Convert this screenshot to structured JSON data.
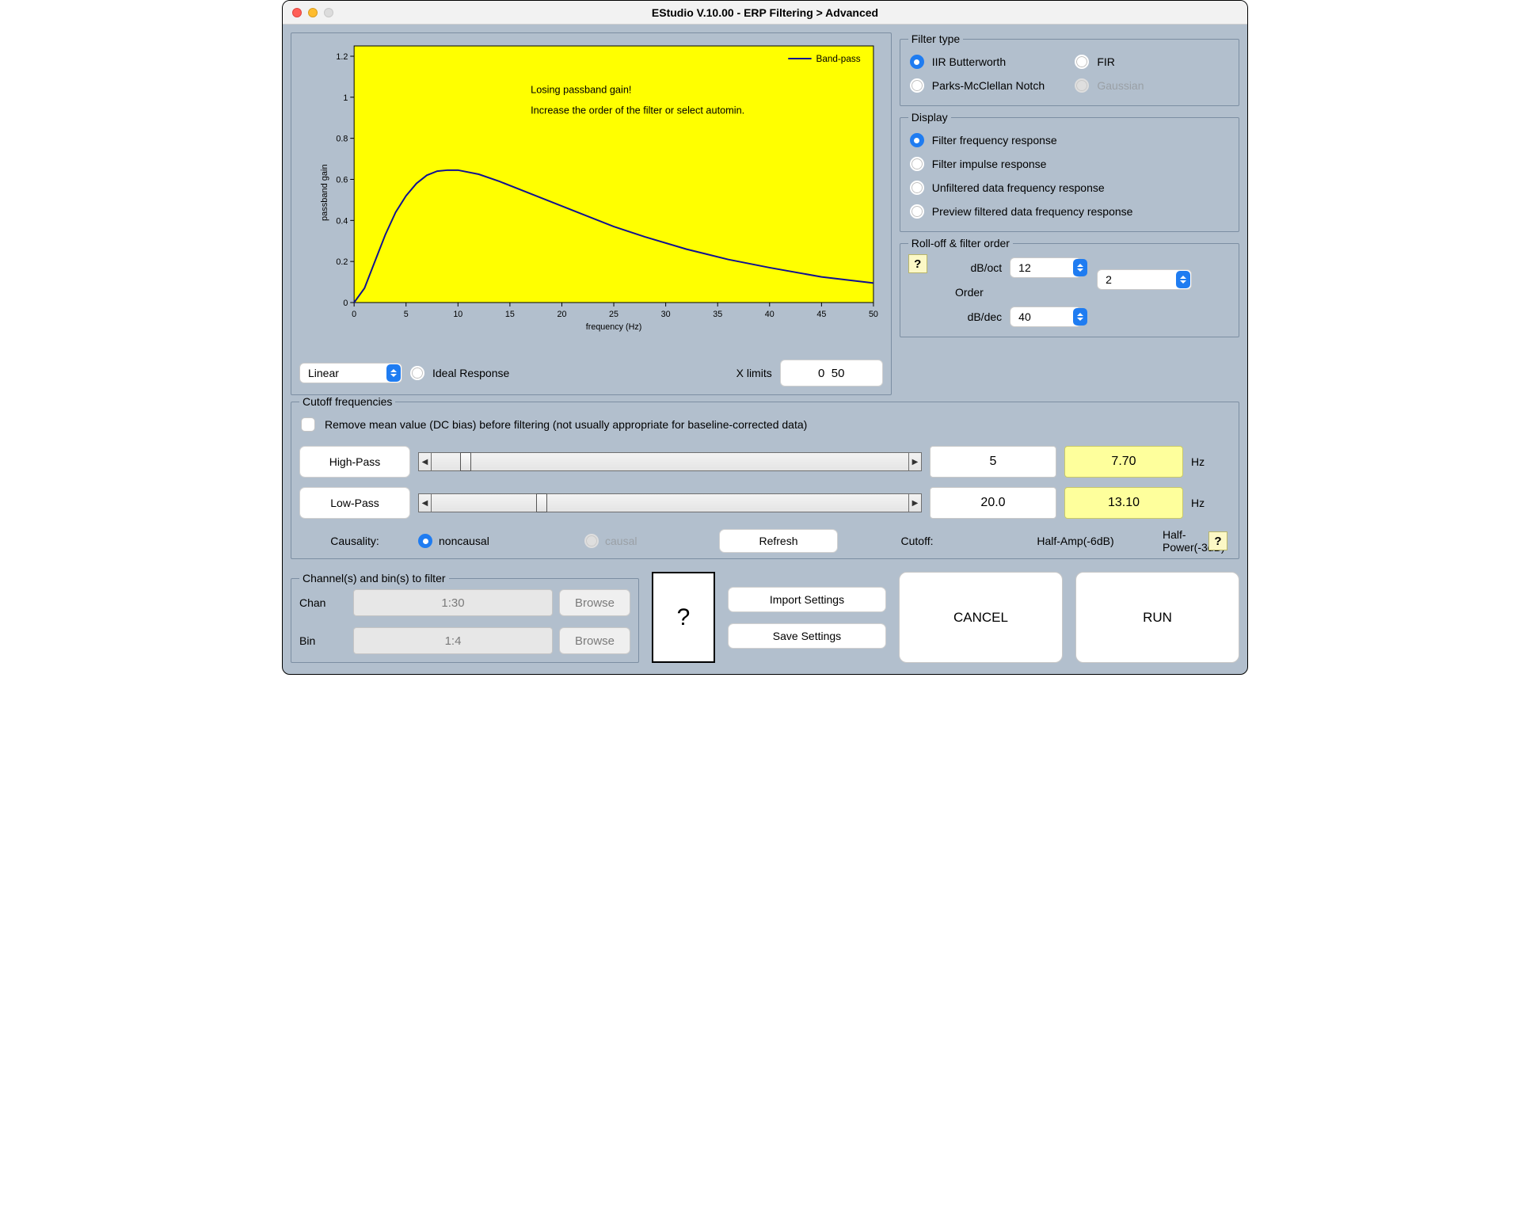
{
  "window": {
    "title": "EStudio V.10.00   -   ERP Filtering > Advanced"
  },
  "chart": {
    "type": "line",
    "background_color": "#ffff00",
    "line_color": "#101090",
    "line_width": 2,
    "xlabel": "frequency (Hz)",
    "ylabel": "passband gain",
    "legend_label": "Band-pass",
    "xlim": [
      0,
      50
    ],
    "ylim": [
      0,
      1.25
    ],
    "xticks": [
      0,
      5,
      10,
      15,
      20,
      25,
      30,
      35,
      40,
      45,
      50
    ],
    "yticks": [
      0,
      0.2,
      0.4,
      0.6,
      0.8,
      1,
      1.2
    ],
    "tick_fontsize": 11,
    "label_fontsize": 11,
    "warning_line1": "Losing passband gain!",
    "warning_line2": "Increase the order of the filter or select automin.",
    "warning_color": "#000000",
    "series": {
      "x": [
        0,
        1,
        2,
        3,
        4,
        5,
        6,
        7,
        8,
        9,
        10,
        12,
        14,
        16,
        18,
        20,
        22,
        25,
        28,
        32,
        36,
        40,
        45,
        50
      ],
      "y": [
        0.0,
        0.07,
        0.2,
        0.33,
        0.44,
        0.52,
        0.58,
        0.62,
        0.64,
        0.645,
        0.645,
        0.625,
        0.59,
        0.55,
        0.51,
        0.47,
        0.43,
        0.37,
        0.32,
        0.26,
        0.21,
        0.17,
        0.125,
        0.095
      ]
    }
  },
  "axis_mode": {
    "options": [
      "Linear"
    ],
    "selected": "Linear",
    "ideal_response_label": "Ideal Response",
    "xlimits_label": "X limits",
    "xlimits_value": "0  50"
  },
  "filter_type": {
    "legend": "Filter type",
    "options": [
      {
        "key": "iir",
        "label": "IIR Butterworth",
        "checked": true,
        "disabled": false
      },
      {
        "key": "fir",
        "label": "FIR",
        "checked": false,
        "disabled": false
      },
      {
        "key": "parks",
        "label": "Parks-McClellan Notch",
        "checked": false,
        "disabled": false
      },
      {
        "key": "gauss",
        "label": "Gaussian",
        "checked": false,
        "disabled": true
      }
    ]
  },
  "display": {
    "legend": "Display",
    "options": [
      {
        "label": "Filter frequency response",
        "checked": true
      },
      {
        "label": "Filter impulse response",
        "checked": false
      },
      {
        "label": "Unfiltered data frequency response",
        "checked": false
      },
      {
        "label": "Preview filtered data frequency response",
        "checked": false
      }
    ]
  },
  "rolloff": {
    "legend": "Roll-off & filter order",
    "db_oct_label": "dB/oct",
    "db_oct_value": "12",
    "db_dec_label": "dB/dec",
    "db_dec_value": "40",
    "order_label": "Order",
    "order_value": "2"
  },
  "cutoff": {
    "legend": "Cutoff frequencies",
    "remove_mean_label": "Remove mean value (DC bias) before filtering (not usually appropriate for baseline-corrected data)",
    "highpass_label": "High-Pass",
    "lowpass_label": "Low-Pass",
    "hz_label": "Hz",
    "highpass": {
      "val_white": "5",
      "val_yellow": "7.70",
      "thumb_pct": 6
    },
    "lowpass": {
      "val_white": "20.0",
      "val_yellow": "13.10",
      "thumb_pct": 22
    },
    "causality_label": "Causality:",
    "noncausal_label": "noncausal",
    "causal_label": "causal",
    "refresh_label": "Refresh",
    "cutoff_label": "Cutoff:",
    "halfamp_label": "Half-Amp(-6dB)",
    "halfpow_label": "Half-Power(-3dB)",
    "yellow_color": "#feff9c"
  },
  "channels": {
    "legend": "Channel(s)  and bin(s) to filter",
    "chan_label": "Chan",
    "chan_value": "1:30",
    "bin_label": "Bin",
    "bin_value": "1:4",
    "browse_label": "Browse"
  },
  "buttons": {
    "help": "?",
    "import": "Import Settings",
    "save": "Save Settings",
    "cancel": "CANCEL",
    "run": "RUN"
  }
}
